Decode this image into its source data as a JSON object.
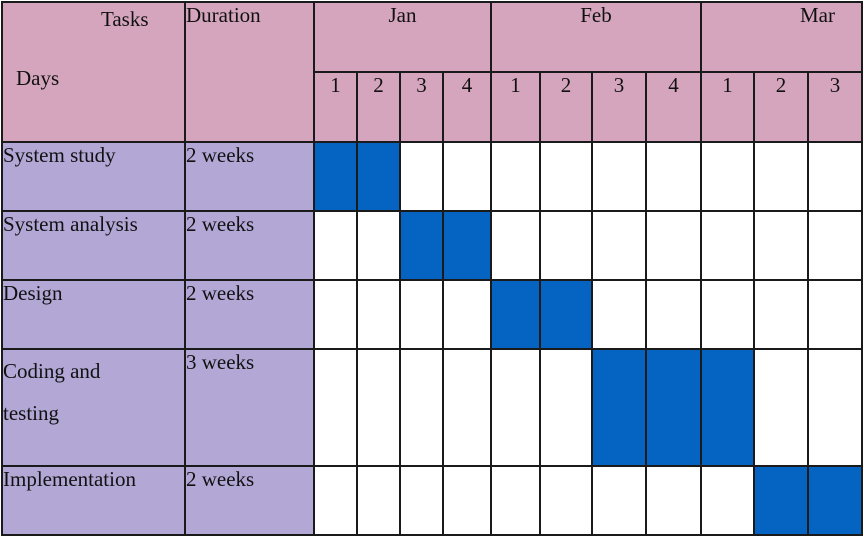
{
  "header": {
    "tasks_label": "Tasks",
    "days_label": "Days",
    "duration_label": "Duration"
  },
  "months": [
    {
      "name": "Jan",
      "weeks": [
        "1",
        "2",
        "3",
        "4"
      ]
    },
    {
      "name": "Feb",
      "weeks": [
        "1",
        "2",
        "3",
        "4"
      ]
    },
    {
      "name": "Mar",
      "weeks": [
        "1",
        "2",
        "3"
      ]
    }
  ],
  "tasks": [
    {
      "name": "System study",
      "duration": "2 weeks",
      "start_week": 1,
      "span_weeks": 2
    },
    {
      "name": "System analysis",
      "duration": "2 weeks",
      "start_week": 3,
      "span_weeks": 2
    },
    {
      "name": "Design",
      "duration": "2 weeks",
      "start_week": 5,
      "span_weeks": 2
    },
    {
      "name": "Coding and testing",
      "name_lines": [
        "Coding and",
        "testing"
      ],
      "duration": "3 weeks",
      "start_week": 7,
      "span_weeks": 3
    },
    {
      "name": "Implementation",
      "duration": "2 weeks",
      "start_week": 10,
      "span_weeks": 2
    }
  ],
  "colors": {
    "header_bg": "#d4a5bd",
    "task_bg": "#b3a7d6",
    "bar": "#0563c1",
    "grid": "#1a1a1a"
  }
}
